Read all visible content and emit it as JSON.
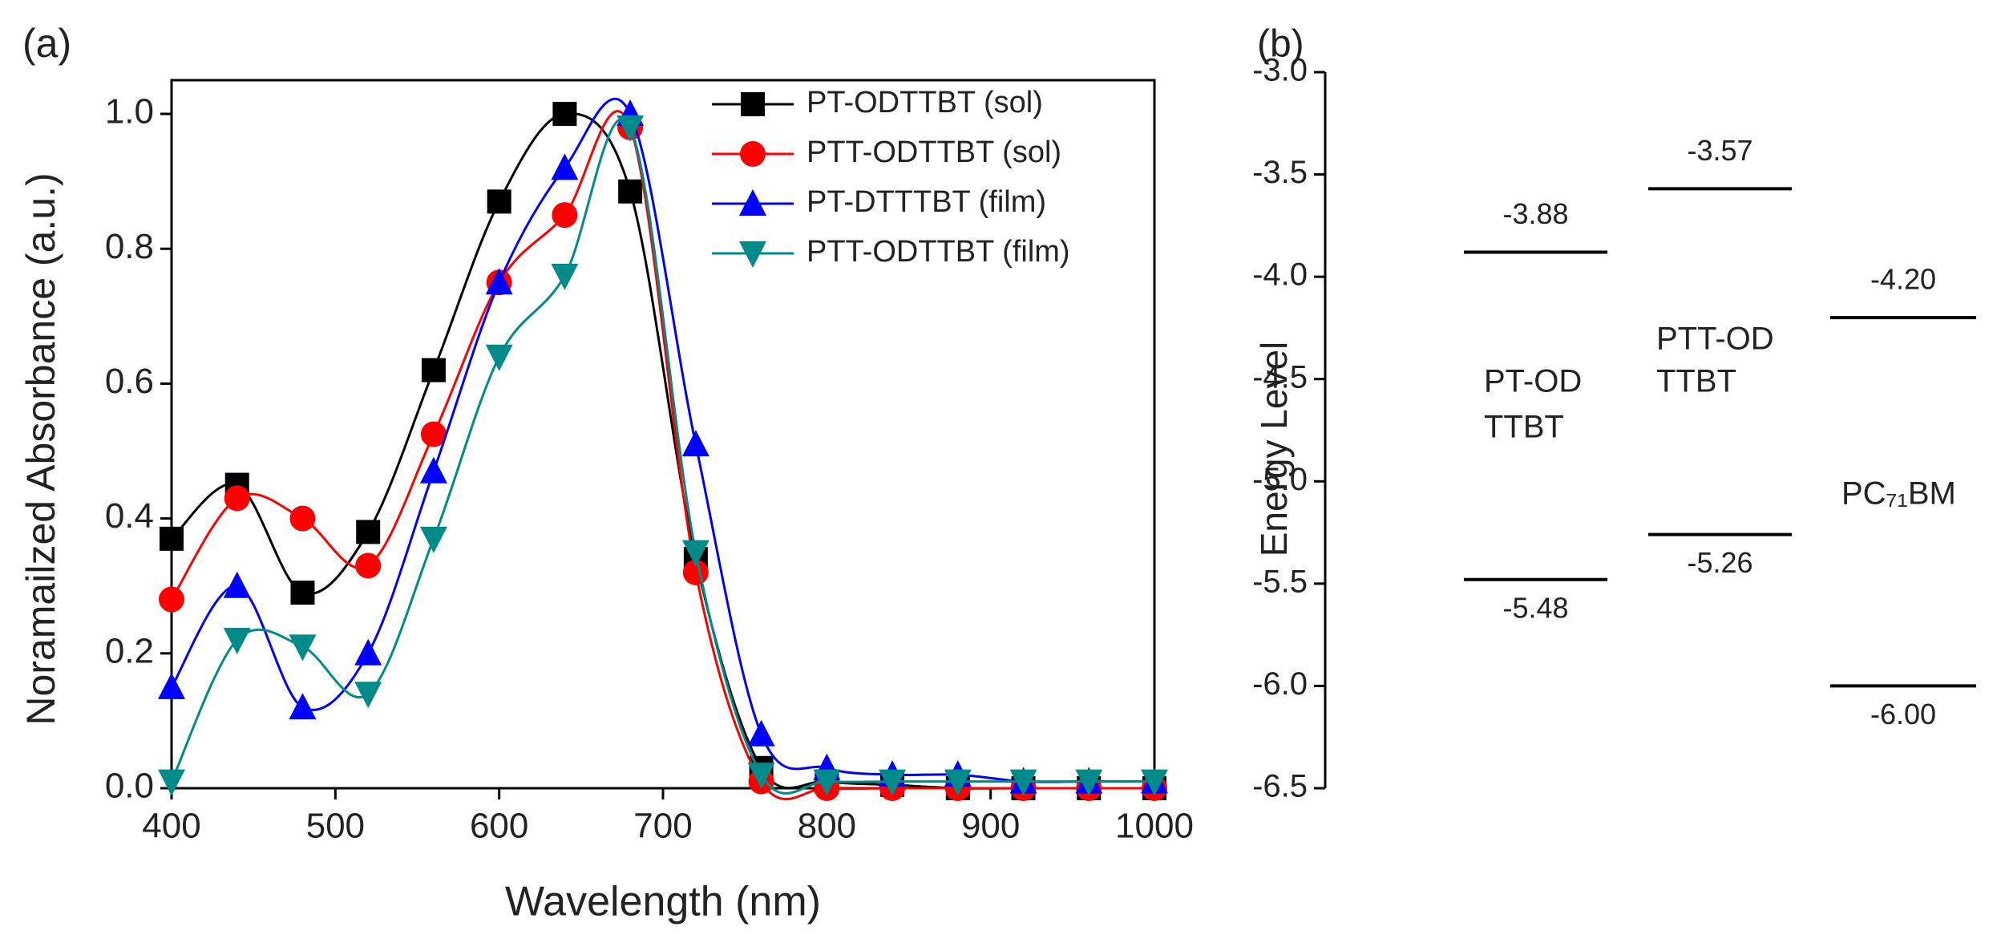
{
  "chart_data": [
    {
      "type": "line",
      "panel_label": "(a)",
      "xlabel": "Wavelength (nm)",
      "ylabel": "Noramailzed Absorbance (a.u.)",
      "x": [
        400,
        440,
        480,
        520,
        560,
        600,
        640,
        680,
        720,
        760,
        800,
        840,
        880,
        920,
        960,
        1000
      ],
      "xlim": [
        400,
        1000
      ],
      "xticks": [
        400,
        500,
        600,
        700,
        800,
        900,
        1000
      ],
      "ylim": [
        0,
        1.05
      ],
      "yticks": [
        {
          "value": 0,
          "label": "0.0"
        },
        0.2,
        0.4,
        0.6,
        0.8,
        {
          "value": 1,
          "label": "1.0"
        }
      ],
      "legend": "upper right",
      "series": [
        {
          "name": "PT-ODTTBT (sol)",
          "color": "#000000",
          "marker": "square",
          "values": [
            0.37,
            0.45,
            0.29,
            0.38,
            0.62,
            0.87,
            1.0,
            0.885,
            0.34,
            0.03,
            0.01,
            0.005,
            0.0,
            0.0,
            0.0,
            0.0
          ]
        },
        {
          "name": "PTT-ODTTBT (sol)",
          "color": "#ff0000",
          "marker": "circle",
          "values": [
            0.28,
            0.43,
            0.4,
            0.33,
            0.525,
            0.75,
            0.85,
            0.98,
            0.32,
            0.01,
            0.0,
            0.0,
            0.0,
            0.0,
            0.0,
            0.0
          ]
        },
        {
          "name": "PT-DTTTBT (film)",
          "color": "#0000ff",
          "marker": "triangle-up",
          "values": [
            0.15,
            0.3,
            0.12,
            0.2,
            0.47,
            0.75,
            0.92,
            1.0,
            0.51,
            0.08,
            0.03,
            0.02,
            0.02,
            0.01,
            0.01,
            0.01
          ]
        },
        {
          "name": "PTT-ODTTBT (film)",
          "color": "#008b8b",
          "marker": "triangle-down",
          "values": [
            0.01,
            0.22,
            0.21,
            0.14,
            0.37,
            0.64,
            0.76,
            0.98,
            0.35,
            0.02,
            0.01,
            0.01,
            0.01,
            0.01,
            0.01,
            0.01
          ]
        }
      ]
    },
    {
      "type": "energy-level",
      "panel_label": "(b)",
      "ylabel": "Energy Level",
      "ylim": [
        -6.5,
        -3.0
      ],
      "yticks": [
        {
          "value": -3.0,
          "label": "-3.0"
        },
        -3.5,
        {
          "value": -4.0,
          "label": "-4.0"
        },
        -4.5,
        {
          "value": -5.0,
          "label": "-5.0"
        },
        -5.5,
        {
          "value": -6.0,
          "label": "-6.0"
        },
        -6.5
      ],
      "categories": [
        [
          "PT-OD",
          "TTBT"
        ],
        [
          "PTT-OD",
          "TTBT"
        ],
        [
          "PC₇₁BM"
        ]
      ],
      "series": [
        {
          "values": [
            -3.88,
            -3.57,
            -4.2
          ],
          "value_labels": [
            "-3.88",
            "-3.57",
            "-4.20"
          ]
        },
        {
          "values": [
            -5.48,
            -5.26,
            -6.0
          ],
          "value_labels": [
            "-5.48",
            "-5.26",
            "-6.00"
          ]
        }
      ]
    }
  ]
}
